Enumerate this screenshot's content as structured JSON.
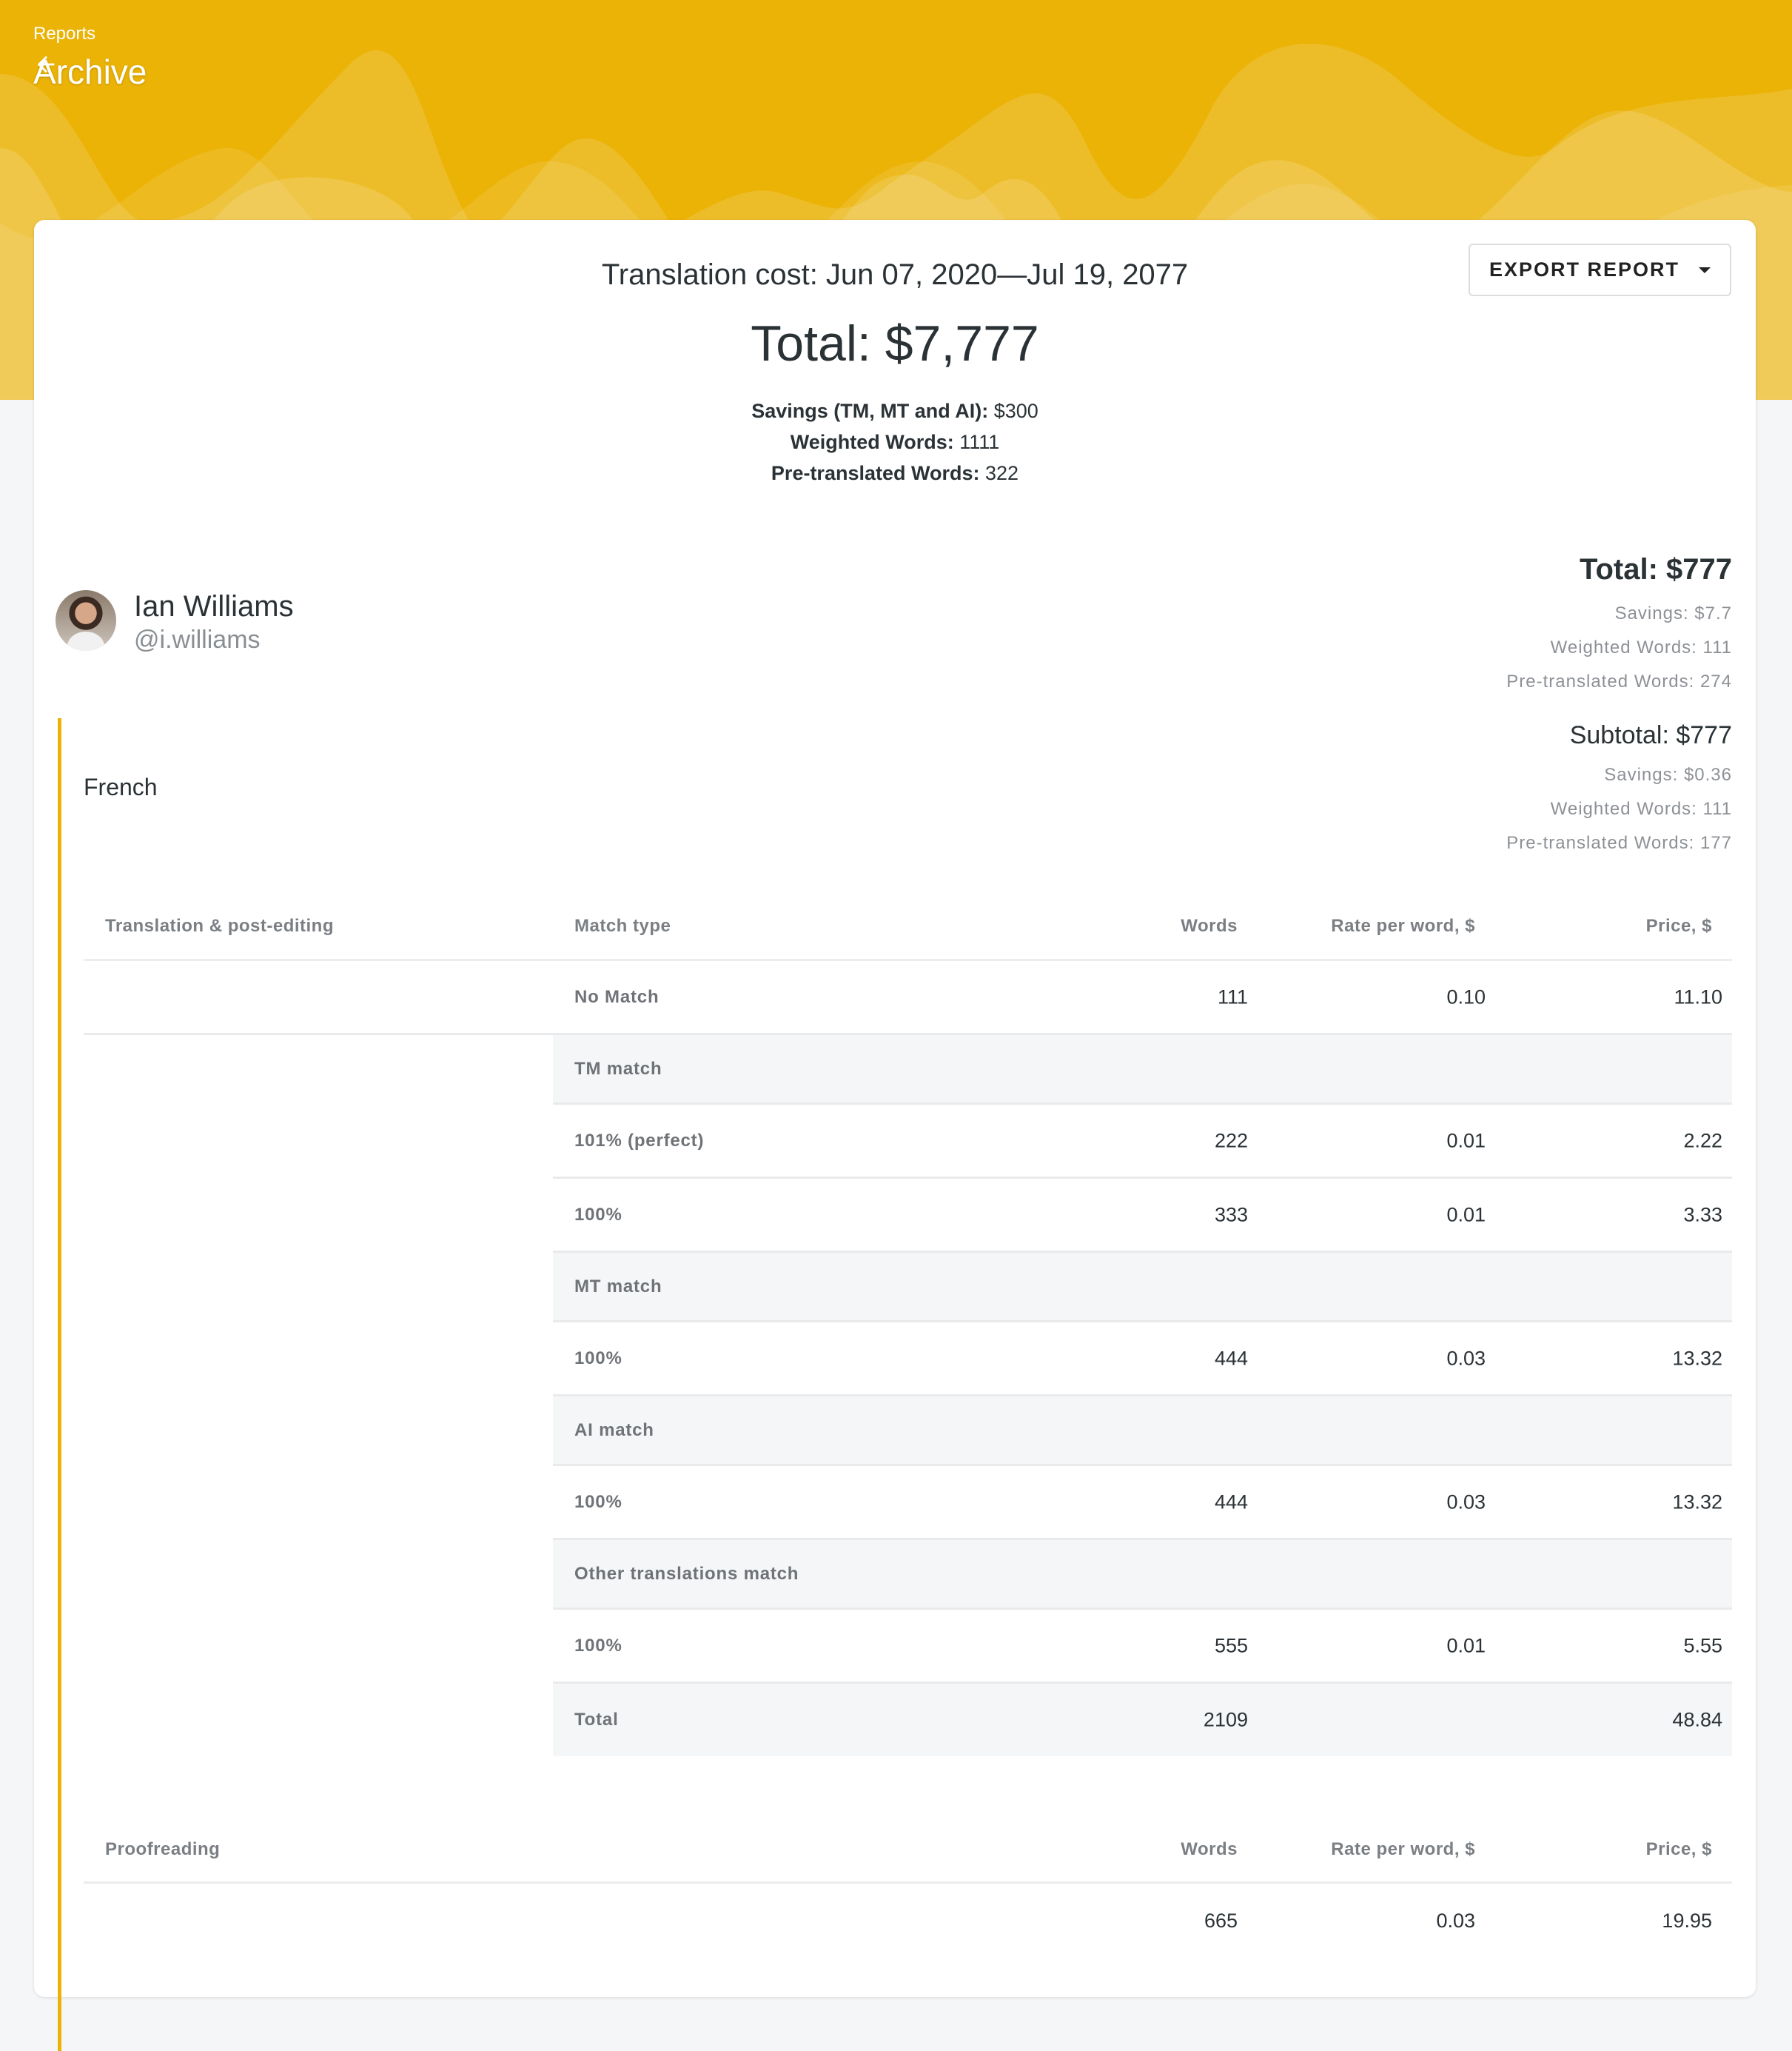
{
  "header": {
    "breadcrumb": "Reports",
    "title": "Archive",
    "accent": "#ebb306"
  },
  "summary": {
    "title": "Translation cost: Jun 07, 2020—Jul 19, 2077",
    "total": "Total: $7,777",
    "lines": [
      {
        "label": "Savings (TM, MT and AI):",
        "value": "$300"
      },
      {
        "label": "Weighted Words:",
        "value": "1111"
      },
      {
        "label": "Pre-translated Words:",
        "value": "322"
      }
    ],
    "export_label": "EXPORT REPORT"
  },
  "user": {
    "name": "Ian Williams",
    "handle": "@i.williams",
    "total": "Total: $777",
    "savings": "Savings: $7.7",
    "weighted": "Weighted Words: 111",
    "pretranslated": "Pre-translated Words: 274"
  },
  "language": {
    "name": "French",
    "subtotal": "Subtotal: $777",
    "savings": "Savings: $0.36",
    "weighted": "Weighted Words: 111",
    "pretranslated": "Pre-translated Words: 177"
  },
  "translation_table": {
    "headers": [
      "Translation & post-editing",
      "Match type",
      "Words",
      "Rate per word, $",
      "Price, $"
    ],
    "rows": [
      {
        "type": "data",
        "label": "No Match",
        "words": "111",
        "rate": "0.10",
        "price": "11.10"
      },
      {
        "type": "group",
        "label": "TM match"
      },
      {
        "type": "data",
        "label": "101% (perfect)",
        "words": "222",
        "rate": "0.01",
        "price": "2.22"
      },
      {
        "type": "data",
        "label": "100%",
        "words": "333",
        "rate": "0.01",
        "price": "3.33"
      },
      {
        "type": "group",
        "label": "MT match"
      },
      {
        "type": "data",
        "label": "100%",
        "words": "444",
        "rate": "0.03",
        "price": "13.32"
      },
      {
        "type": "group",
        "label": "AI match"
      },
      {
        "type": "data",
        "label": "100%",
        "words": "444",
        "rate": "0.03",
        "price": "13.32"
      },
      {
        "type": "group",
        "label": "Other translations match"
      },
      {
        "type": "data",
        "label": "100%",
        "words": "555",
        "rate": "0.01",
        "price": "5.55"
      },
      {
        "type": "total",
        "label": "Total",
        "words": "2109",
        "rate": "",
        "price": "48.84"
      }
    ]
  },
  "proofreading_table": {
    "headers": [
      "Proofreading",
      "Words",
      "Rate per word, $",
      "Price, $"
    ],
    "row": {
      "words": "665",
      "rate": "0.03",
      "price": "19.95"
    }
  }
}
